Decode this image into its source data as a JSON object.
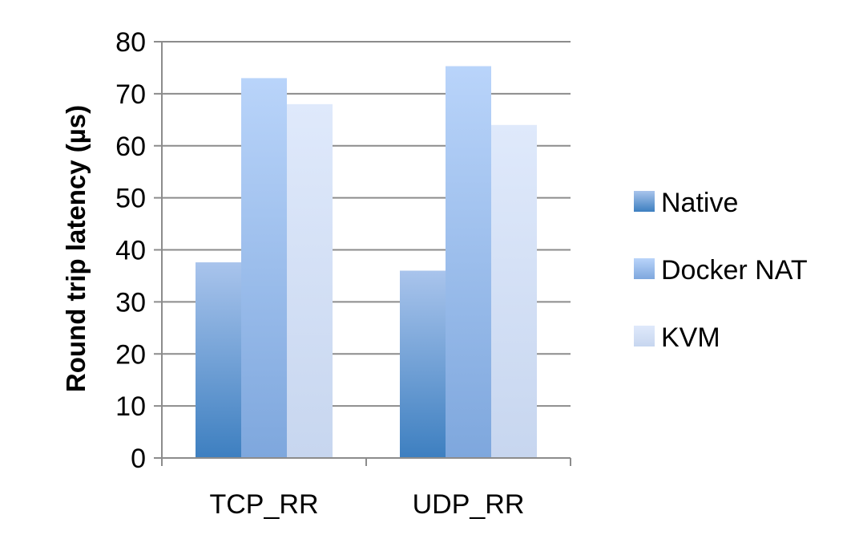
{
  "chart_data": {
    "type": "bar",
    "categories": [
      "TCP_RR",
      "UDP_RR"
    ],
    "series": [
      {
        "name": "Native",
        "values": [
          37.6,
          36.0
        ]
      },
      {
        "name": "Docker NAT",
        "values": [
          73.0,
          75.3
        ]
      },
      {
        "name": "KVM",
        "values": [
          68.0,
          64.0
        ]
      }
    ],
    "title": "",
    "xlabel": "",
    "ylabel": "Round trip latency (µs)",
    "ylim": [
      0,
      80
    ],
    "yticks": [
      0,
      10,
      20,
      30,
      40,
      50,
      60,
      70,
      80
    ],
    "grid": true,
    "legend_position": "right",
    "colors": {
      "Native": {
        "top": "#a9c4ec",
        "bottom": "#3d7fc0"
      },
      "Docker NAT": {
        "top": "#b9d4fa",
        "bottom": "#7ea7dd"
      },
      "KVM": {
        "top": "#dfe9fb",
        "bottom": "#c7d6ef"
      }
    }
  }
}
